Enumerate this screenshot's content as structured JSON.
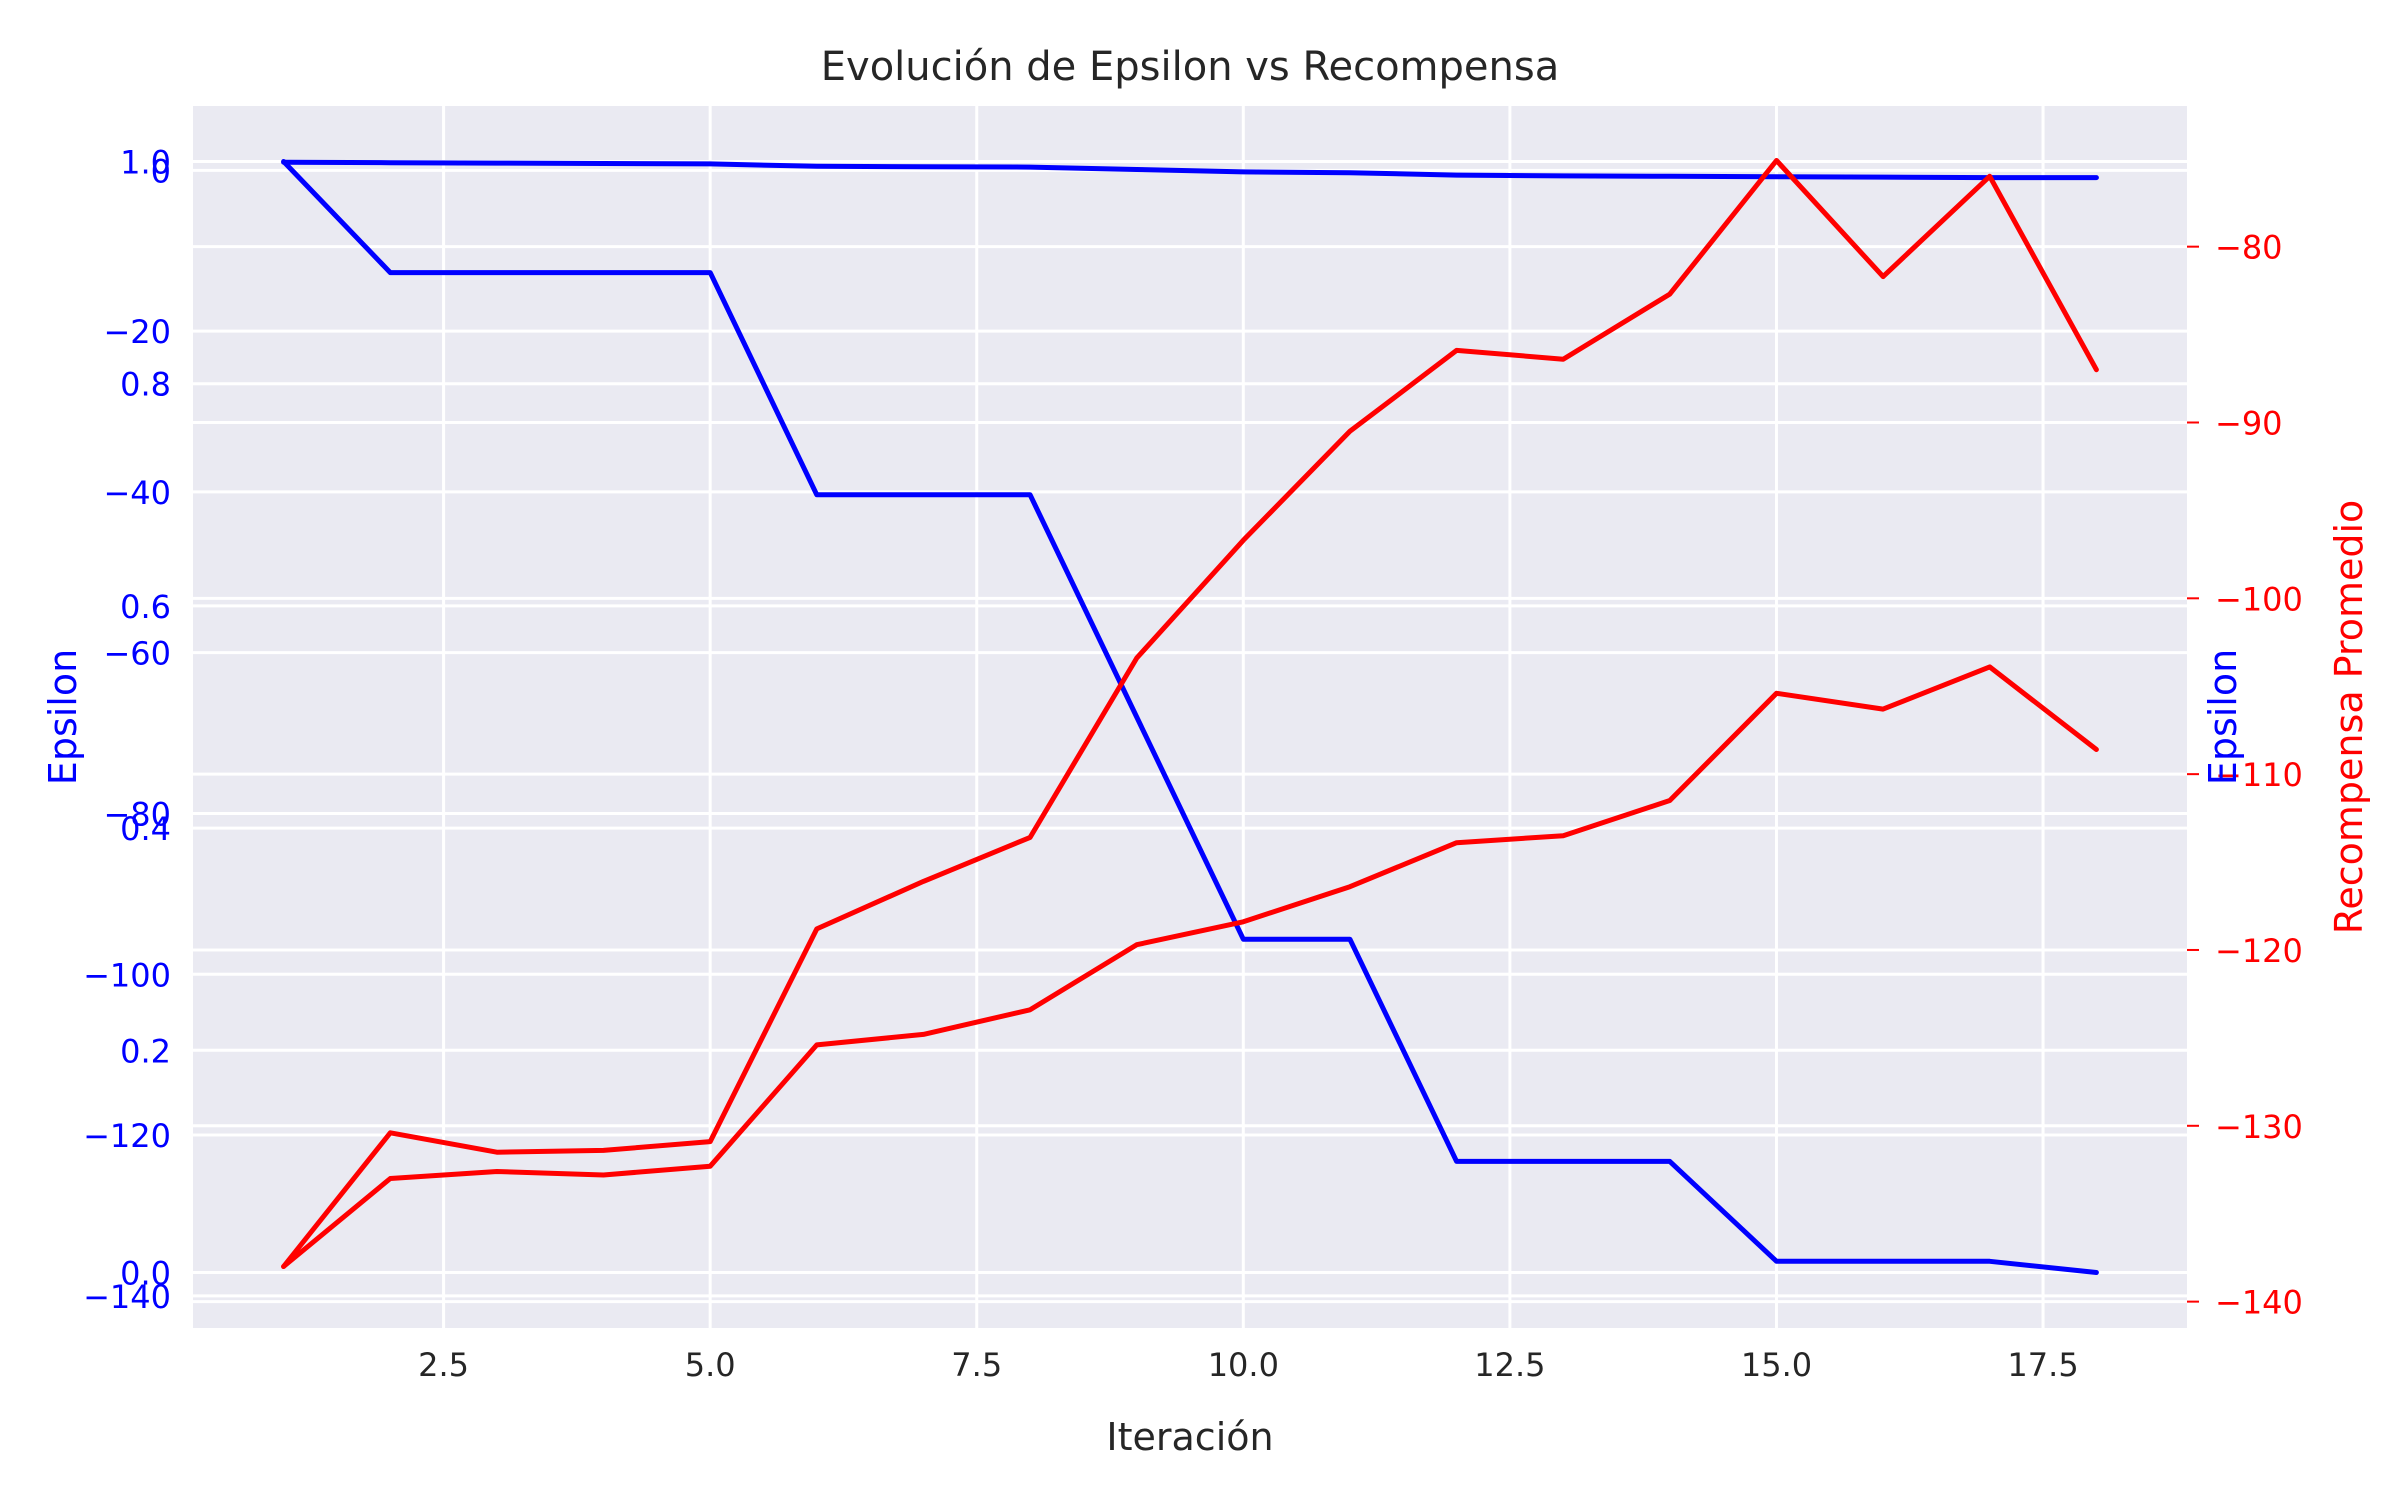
{
  "chart_data": {
    "type": "line",
    "title": "Evolución de Epsilon vs Recompensa",
    "xlabel": "Iteración",
    "xlim": [
      0.15,
      18.85
    ],
    "xticks": [
      2.5,
      5.0,
      7.5,
      10.0,
      12.5,
      15.0,
      17.5
    ],
    "xtick_labels": [
      "2.5",
      "5.0",
      "7.5",
      "10.0",
      "12.5",
      "15.0",
      "17.5"
    ],
    "grid": true,
    "background": "#eaeaf2",
    "axes": [
      {
        "id": "epsilon_a",
        "side": "left",
        "label": "Epsilon",
        "color": "#0000ff",
        "ylim": [
          -0.05,
          1.05
        ],
        "ticks": [
          0.0,
          0.2,
          0.4,
          0.6,
          0.8,
          1.0
        ],
        "tick_labels": [
          "0.0",
          "0.2",
          "0.4",
          "0.6",
          "0.8",
          "1.0"
        ]
      },
      {
        "id": "epsilon_b",
        "side": "left",
        "label": "",
        "color": "#0000ff",
        "ylim": [
          -144,
          8
        ],
        "ticks": [
          0,
          -20,
          -40,
          -60,
          -80,
          -100,
          -120,
          -140
        ],
        "tick_labels": [
          "0",
          "−20",
          "−40",
          "−60",
          "−80",
          "−100",
          "−120",
          "−140"
        ]
      },
      {
        "id": "reward",
        "side": "right",
        "label": "Recompensa Promedio",
        "second_label": "Epsilon",
        "color": "#ff0000",
        "ylim": [
          -141.5,
          -72
        ],
        "ticks": [
          -80,
          -90,
          -100,
          -110,
          -120,
          -130,
          -140
        ],
        "tick_labels": [
          "−80",
          "−90",
          "−100",
          "−110",
          "−120",
          "−130",
          "−140"
        ]
      }
    ],
    "series": [
      {
        "axis": "epsilon_a",
        "color": "#0000ff",
        "x": [
          1,
          2,
          3,
          4,
          5,
          6,
          7,
          8,
          9,
          10,
          11,
          12,
          13,
          14,
          15,
          16,
          17,
          18
        ],
        "values": [
          1.0,
          0.9,
          0.9,
          0.9,
          0.9,
          0.7,
          0.7,
          0.7,
          0.5,
          0.3,
          0.3,
          0.1,
          0.1,
          0.1,
          0.01,
          0.01,
          0.01,
          0.0
        ]
      },
      {
        "axis": "epsilon_b",
        "color": "#0000ff",
        "x": [
          1,
          2,
          3,
          4,
          5,
          6,
          7,
          8,
          9,
          10,
          11,
          12,
          13,
          14,
          15,
          16,
          17,
          18
        ],
        "values": [
          1.0,
          0.95,
          0.9,
          0.85,
          0.8,
          0.5,
          0.45,
          0.4,
          0.1,
          -0.2,
          -0.3,
          -0.6,
          -0.7,
          -0.75,
          -0.8,
          -0.85,
          -0.9,
          -0.9
        ]
      },
      {
        "axis": "reward",
        "color": "#ff0000",
        "x": [
          1,
          2,
          3,
          4,
          5,
          6,
          7,
          8,
          9,
          10,
          11,
          12,
          13,
          14,
          15,
          16,
          17,
          18
        ],
        "values": [
          -138.0,
          -133.0,
          -132.6,
          -132.8,
          -132.3,
          -125.4,
          -124.8,
          -123.4,
          -119.7,
          -118.4,
          -116.4,
          -113.9,
          -113.5,
          -111.5,
          -105.4,
          -106.3,
          -103.9,
          -108.6
        ]
      },
      {
        "axis": "reward",
        "color": "#ff0000",
        "x": [
          1,
          2,
          3,
          4,
          5,
          6,
          7,
          8,
          9,
          10,
          11,
          12,
          13,
          14,
          15,
          16,
          17,
          18
        ],
        "values": [
          -138.0,
          -130.4,
          -131.5,
          -131.4,
          -130.9,
          -118.8,
          -116.1,
          -113.6,
          -103.4,
          -96.7,
          -90.5,
          -85.9,
          -86.4,
          -82.7,
          -75.1,
          -81.7,
          -76.0,
          -87.0
        ]
      }
    ]
  }
}
